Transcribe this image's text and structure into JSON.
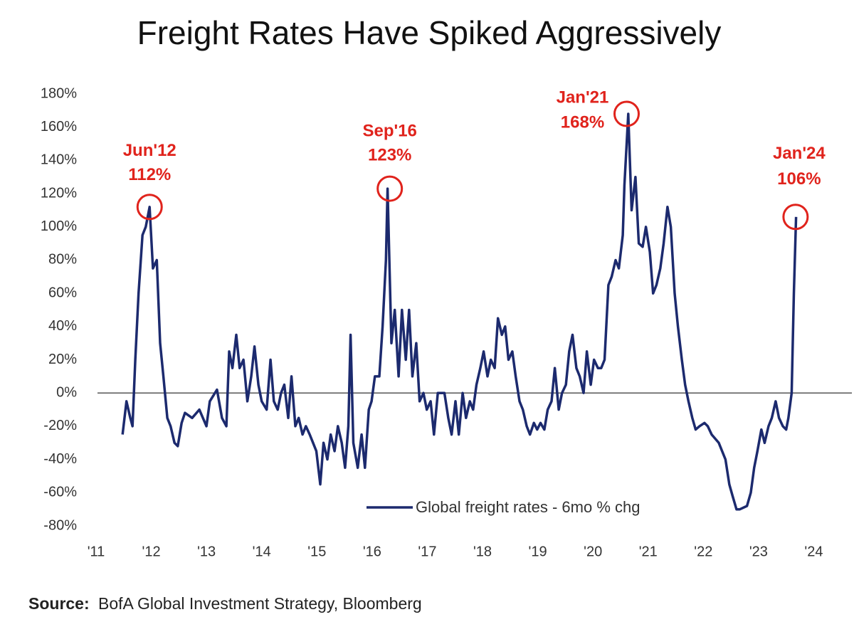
{
  "chart_data": {
    "type": "line",
    "title": "Freight Rates Have Spiked Aggressively",
    "x": [
      2011.48,
      2011.55,
      2011.62,
      2011.66,
      2011.71,
      2011.77,
      2011.84,
      2011.9,
      2011.97,
      2012.03,
      2012.1,
      2012.16,
      2012.22,
      2012.29,
      2012.35,
      2012.42,
      2012.48,
      2012.55,
      2012.61,
      2012.74,
      2012.87,
      2013.0,
      2013.06,
      2013.19,
      2013.28,
      2013.36,
      2013.41,
      2013.47,
      2013.54,
      2013.6,
      2013.67,
      2013.74,
      2013.81,
      2013.87,
      2013.94,
      2014.0,
      2014.09,
      2014.16,
      2014.22,
      2014.29,
      2014.35,
      2014.41,
      2014.48,
      2014.54,
      2014.61,
      2014.67,
      2014.74,
      2014.8,
      2014.87,
      2014.93,
      2014.99,
      2015.06,
      2015.12,
      2015.19,
      2015.25,
      2015.32,
      2015.38,
      2015.45,
      2015.51,
      2015.57,
      2015.61,
      2015.66,
      2015.74,
      2015.81,
      2015.87,
      2015.94,
      2015.99,
      2016.05,
      2016.13,
      2016.19,
      2016.25,
      2016.28,
      2016.35,
      2016.41,
      2016.48,
      2016.54,
      2016.61,
      2016.67,
      2016.73,
      2016.8,
      2016.86,
      2016.93,
      2016.99,
      2017.06,
      2017.12,
      2017.19,
      2017.25,
      2017.31,
      2017.38,
      2017.44,
      2017.51,
      2017.57,
      2017.64,
      2017.7,
      2017.77,
      2017.83,
      2017.89,
      2017.96,
      2018.02,
      2018.09,
      2018.15,
      2018.22,
      2018.28,
      2018.35,
      2018.41,
      2018.47,
      2018.54,
      2018.6,
      2018.67,
      2018.73,
      2018.8,
      2018.86,
      2018.93,
      2018.99,
      2019.05,
      2019.12,
      2019.18,
      2019.25,
      2019.31,
      2019.38,
      2019.44,
      2019.51,
      2019.57,
      2019.63,
      2019.7,
      2019.76,
      2019.83,
      2019.89,
      2019.96,
      2020.02,
      2020.09,
      2020.15,
      2020.21,
      2020.28,
      2020.34,
      2020.41,
      2020.47,
      2020.54,
      2020.57,
      2020.64,
      2020.7,
      2020.77,
      2020.83,
      2020.9,
      2020.96,
      2021.03,
      2021.09,
      2021.15,
      2021.22,
      2021.28,
      2021.35,
      2021.41,
      2021.48,
      2021.54,
      2021.61,
      2021.67,
      2021.73,
      2021.8,
      2021.86,
      2021.93,
      2022.02,
      2022.08,
      2022.15,
      2022.28,
      2022.4,
      2022.47,
      2022.53,
      2022.6,
      2022.66,
      2022.79,
      2022.86,
      2022.92,
      2022.98,
      2023.05,
      2023.11,
      2023.18,
      2023.24,
      2023.31,
      2023.37,
      2023.44,
      2023.5,
      2023.54,
      2023.6,
      2023.64,
      2023.68
    ],
    "series": [
      {
        "name": "Global freight rates - 6mo % chg",
        "color": "#1c2a6e",
        "values": [
          -25,
          -5,
          -15,
          -20,
          20,
          60,
          95,
          100,
          112,
          75,
          80,
          30,
          10,
          -15,
          -20,
          -30,
          -32,
          -18,
          -12,
          -15,
          -10,
          -20,
          -5,
          2,
          -15,
          -20,
          25,
          15,
          35,
          15,
          20,
          -5,
          10,
          28,
          5,
          -5,
          -10,
          20,
          -5,
          -10,
          0,
          5,
          -15,
          10,
          -20,
          -15,
          -25,
          -20,
          -25,
          -30,
          -35,
          -55,
          -30,
          -40,
          -25,
          -35,
          -20,
          -30,
          -45,
          -20,
          35,
          -30,
          -45,
          -25,
          -45,
          -10,
          -5,
          10,
          10,
          40,
          80,
          123,
          30,
          50,
          10,
          50,
          20,
          50,
          10,
          30,
          -5,
          0,
          -10,
          -5,
          -25,
          0,
          0,
          0,
          -15,
          -25,
          -5,
          -25,
          0,
          -15,
          -5,
          -10,
          5,
          15,
          25,
          10,
          20,
          15,
          45,
          35,
          40,
          20,
          25,
          10,
          -5,
          -10,
          -20,
          -25,
          -18,
          -22,
          -18,
          -22,
          -10,
          -5,
          15,
          -10,
          0,
          5,
          25,
          35,
          15,
          10,
          0,
          25,
          5,
          20,
          15,
          15,
          20,
          65,
          70,
          80,
          75,
          95,
          125,
          168,
          110,
          130,
          90,
          88,
          100,
          85,
          60,
          65,
          75,
          90,
          112,
          100,
          60,
          40,
          20,
          5,
          -5,
          -15,
          -22,
          -20,
          -18,
          -20,
          -25,
          -30,
          -40,
          -55,
          -62,
          -70,
          -70,
          -68,
          -60,
          -45,
          -35,
          -22,
          -30,
          -20,
          -15,
          -5,
          -15,
          -20,
          -22,
          -15,
          0,
          60,
          106
        ]
      }
    ],
    "xlim": [
      2011,
      2024.69
    ],
    "xticks": [
      {
        "value": 2011,
        "label": "'11"
      },
      {
        "value": 2012,
        "label": "'12"
      },
      {
        "value": 2013,
        "label": "'13"
      },
      {
        "value": 2014,
        "label": "'14"
      },
      {
        "value": 2015,
        "label": "'15"
      },
      {
        "value": 2016,
        "label": "'16"
      },
      {
        "value": 2017,
        "label": "'17"
      },
      {
        "value": 2018,
        "label": "'18"
      },
      {
        "value": 2019,
        "label": "'19"
      },
      {
        "value": 2020,
        "label": "'20"
      },
      {
        "value": 2021,
        "label": "'21"
      },
      {
        "value": 2022,
        "label": "'22"
      },
      {
        "value": 2023,
        "label": "'23"
      },
      {
        "value": 2024,
        "label": "'24"
      }
    ],
    "ylim": [
      -80,
      180
    ],
    "yticks": [
      {
        "value": 180,
        "label": "180%"
      },
      {
        "value": 160,
        "label": "160%"
      },
      {
        "value": 140,
        "label": "140%"
      },
      {
        "value": 120,
        "label": "120%"
      },
      {
        "value": 100,
        "label": "100%"
      },
      {
        "value": 80,
        "label": "80%"
      },
      {
        "value": 60,
        "label": "60%"
      },
      {
        "value": 40,
        "label": "40%"
      },
      {
        "value": 20,
        "label": "20%"
      },
      {
        "value": 0,
        "label": "0%"
      },
      {
        "value": -20,
        "label": "-20%"
      },
      {
        "value": -40,
        "label": "-40%"
      },
      {
        "value": -60,
        "label": "-60%"
      },
      {
        "value": -80,
        "label": "-80%"
      }
    ],
    "annotations": [
      {
        "label": "Jun'12",
        "x": 2011.97,
        "value": 112,
        "value_label": "112%"
      },
      {
        "label": "Sep'16",
        "x": 2016.32,
        "value": 123,
        "value_label": "123%"
      },
      {
        "label": "Jan'21",
        "x": 2020.61,
        "value": 168,
        "value_label": "168%"
      },
      {
        "label": "Jan'24",
        "x": 2023.67,
        "value": 106,
        "value_label": "106%"
      }
    ],
    "annotation_color": "#e0231c",
    "source": {
      "label": "Source:",
      "text": "BofA Global Investment Strategy, Bloomberg"
    }
  }
}
